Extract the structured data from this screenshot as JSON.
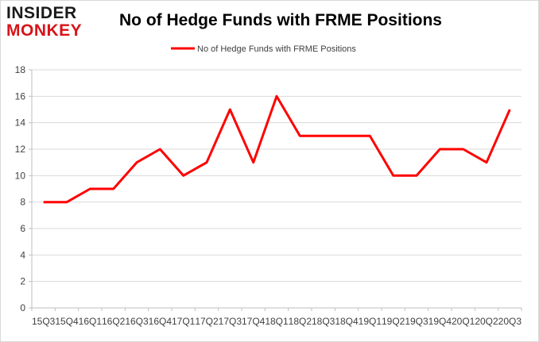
{
  "logo": {
    "line1": "INSIDER",
    "line2": "MONKEY"
  },
  "chart_data": {
    "type": "line",
    "title": "No of Hedge Funds with FRME Positions",
    "xlabel": "",
    "ylabel": "",
    "categories": [
      "2015Q3",
      "2015Q4",
      "2016Q1",
      "2016Q2",
      "2016Q3",
      "2016Q4",
      "2017Q1",
      "2017Q2",
      "2017Q3",
      "2017Q4",
      "2018Q1",
      "2018Q2",
      "2018Q3",
      "2018Q4",
      "2019Q1",
      "2019Q2",
      "2019Q3",
      "2019Q4",
      "2020Q1",
      "2020Q2",
      "2020Q3"
    ],
    "tick_labels": [
      "15Q3",
      "15Q4",
      "16Q1",
      "16Q2",
      "16Q3",
      "16Q4",
      "17Q1",
      "17Q2",
      "17Q3",
      "17Q4",
      "18Q1",
      "18Q2",
      "18Q3",
      "18Q4",
      "19Q1",
      "19Q2",
      "19Q3",
      "19Q4",
      "20Q1",
      "20Q2",
      "20Q3"
    ],
    "series": [
      {
        "name": "No of Hedge Funds with FRME Positions",
        "values": [
          8,
          8,
          9,
          9,
          11,
          12,
          10,
          11,
          15,
          11,
          16,
          13,
          13,
          13,
          13,
          10,
          10,
          12,
          12,
          11,
          15
        ]
      }
    ],
    "ylim": [
      0,
      18
    ],
    "yticks": [
      0,
      2,
      4,
      6,
      8,
      10,
      12,
      14,
      16,
      18
    ],
    "grid": true,
    "legend_position": "top-center",
    "colors": {
      "line": "#ff0000",
      "grid": "#d9d9d9",
      "axis": "#bfbfbf",
      "text": "#404040"
    }
  }
}
